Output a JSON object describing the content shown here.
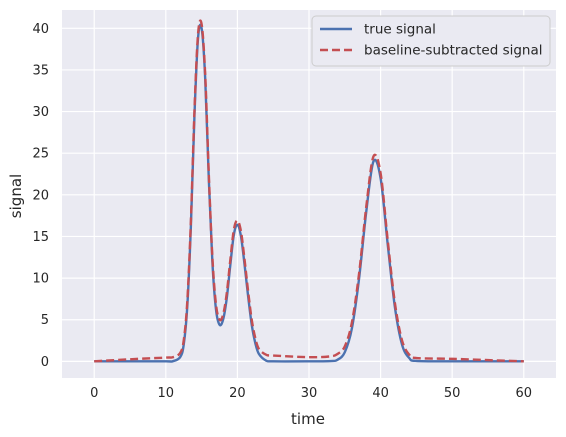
{
  "chart_data": {
    "type": "line",
    "xlabel": "time",
    "ylabel": "signal",
    "xlim": [
      -4.5,
      64.5
    ],
    "ylim": [
      -2.0,
      42.2
    ],
    "xticks": [
      0,
      10,
      20,
      30,
      40,
      50,
      60
    ],
    "yticks": [
      0,
      5,
      10,
      15,
      20,
      25,
      30,
      35,
      40
    ],
    "grid": true,
    "legend_position": "top-right",
    "background": "#eaeaf2",
    "series": [
      {
        "name": "true signal",
        "color": "#4c72b0",
        "style": "solid",
        "x": [
          0,
          5,
          10,
          11,
          12,
          12.5,
          13,
          13.5,
          14,
          14.5,
          15,
          15.5,
          16,
          16.5,
          17,
          17.5,
          18,
          18.5,
          19,
          19.5,
          20,
          20.5,
          21,
          21.5,
          22,
          22.5,
          23,
          24,
          25,
          30,
          33,
          34,
          35,
          36,
          37,
          38,
          39,
          40,
          41,
          42,
          43,
          44,
          45,
          50,
          55,
          60
        ],
        "y": [
          0,
          0,
          0,
          0.02,
          0.5,
          2.0,
          6.6,
          16.2,
          29.5,
          38.8,
          40.0,
          34.0,
          22.0,
          12.0,
          6.3,
          4.4,
          5.0,
          7.5,
          11.5,
          15.2,
          16.4,
          15.0,
          11.6,
          7.8,
          4.4,
          2.2,
          0.9,
          0.1,
          0,
          0,
          0.03,
          0.2,
          1.1,
          4.0,
          10.0,
          18.0,
          24.0,
          22.0,
          14.0,
          6.5,
          2.0,
          0.4,
          0.05,
          0,
          0,
          0
        ]
      },
      {
        "name": "baseline-subtracted signal",
        "color": "#c44e52",
        "style": "dashed",
        "x": [
          0,
          5,
          10,
          11,
          12,
          12.5,
          13,
          13.5,
          14,
          14.5,
          15,
          15.5,
          16,
          16.5,
          17,
          17.5,
          18,
          18.5,
          19,
          19.5,
          20,
          20.5,
          21,
          21.5,
          22,
          22.5,
          23,
          24,
          25,
          30,
          33,
          34,
          35,
          36,
          37,
          38,
          39,
          40,
          41,
          42,
          43,
          44,
          45,
          50,
          55,
          60
        ],
        "y": [
          0,
          0.25,
          0.45,
          0.5,
          1.0,
          2.5,
          7.2,
          16.8,
          30.1,
          39.3,
          40.5,
          34.5,
          22.6,
          12.6,
          6.9,
          5.0,
          5.6,
          8.1,
          12.1,
          15.8,
          16.9,
          15.6,
          12.2,
          8.4,
          5.0,
          2.8,
          1.5,
          0.8,
          0.7,
          0.5,
          0.6,
          0.9,
          1.8,
          4.7,
          10.6,
          18.6,
          24.6,
          22.6,
          14.5,
          7.0,
          2.5,
          0.8,
          0.4,
          0.3,
          0.15,
          0
        ]
      }
    ]
  }
}
